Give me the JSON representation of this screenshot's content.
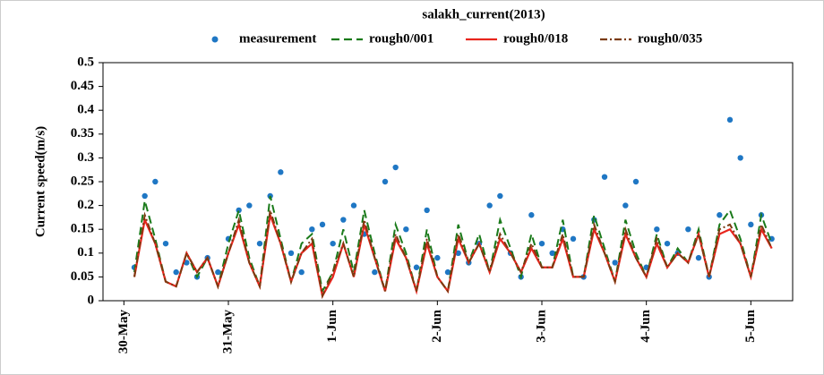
{
  "chart_data": {
    "type": "line",
    "title": "salakh_current(2013)",
    "y_label": "Current speed(m/s)",
    "x": [
      0.1,
      0.2,
      0.3,
      0.4,
      0.5,
      0.6,
      0.7,
      0.8,
      0.9,
      1.0,
      1.1,
      1.2,
      1.3,
      1.4,
      1.5,
      1.6,
      1.7,
      1.8,
      1.9,
      2.0,
      2.1,
      2.2,
      2.3,
      2.4,
      2.5,
      2.6,
      2.7,
      2.8,
      2.9,
      3.0,
      3.1,
      3.2,
      3.3,
      3.4,
      3.5,
      3.6,
      3.7,
      3.8,
      3.9,
      4.0,
      4.1,
      4.2,
      4.3,
      4.4,
      4.5,
      4.6,
      4.7,
      4.8,
      4.9,
      5.0,
      5.1,
      5.2,
      5.3,
      5.4,
      5.5,
      5.6,
      5.7,
      5.8,
      5.9,
      6.0,
      6.1,
      6.2
    ],
    "series": [
      {
        "name": "measurement",
        "color": "#1f77c4",
        "style": "dots",
        "values": [
          0.07,
          0.22,
          0.25,
          0.12,
          0.06,
          0.08,
          0.05,
          0.09,
          0.06,
          0.13,
          0.19,
          0.2,
          0.12,
          0.22,
          0.27,
          0.1,
          0.06,
          0.15,
          0.16,
          0.12,
          0.17,
          0.2,
          0.14,
          0.06,
          0.25,
          0.28,
          0.15,
          0.07,
          0.19,
          0.09,
          0.06,
          0.1,
          0.08,
          0.12,
          0.2,
          0.22,
          0.1,
          0.05,
          0.18,
          0.12,
          0.1,
          0.15,
          0.13,
          0.05,
          0.17,
          0.26,
          0.08,
          0.2,
          0.25,
          0.07,
          0.15,
          0.12,
          0.1,
          0.15,
          0.09,
          0.05,
          0.18,
          0.38,
          0.3,
          0.16,
          0.18,
          0.13
        ]
      },
      {
        "name": "rough0/001",
        "color": "#1a7a1a",
        "style": "dashed",
        "values": [
          0.06,
          0.21,
          0.13,
          0.04,
          0.03,
          0.1,
          0.05,
          0.09,
          0.03,
          0.12,
          0.19,
          0.09,
          0.03,
          0.22,
          0.13,
          0.04,
          0.12,
          0.14,
          0.02,
          0.06,
          0.15,
          0.06,
          0.19,
          0.1,
          0.02,
          0.16,
          0.1,
          0.02,
          0.15,
          0.05,
          0.02,
          0.16,
          0.08,
          0.14,
          0.06,
          0.17,
          0.11,
          0.05,
          0.14,
          0.07,
          0.07,
          0.17,
          0.05,
          0.05,
          0.18,
          0.11,
          0.04,
          0.17,
          0.1,
          0.05,
          0.14,
          0.07,
          0.11,
          0.08,
          0.15,
          0.05,
          0.16,
          0.19,
          0.13,
          0.05,
          0.18,
          0.12
        ]
      },
      {
        "name": "rough0/018",
        "color": "#e8251d",
        "style": "solid",
        "values": [
          0.05,
          0.17,
          0.12,
          0.04,
          0.03,
          0.1,
          0.06,
          0.09,
          0.03,
          0.1,
          0.16,
          0.08,
          0.03,
          0.18,
          0.12,
          0.04,
          0.1,
          0.12,
          0.01,
          0.05,
          0.12,
          0.05,
          0.16,
          0.09,
          0.02,
          0.13,
          0.09,
          0.02,
          0.12,
          0.05,
          0.02,
          0.13,
          0.08,
          0.12,
          0.06,
          0.13,
          0.1,
          0.06,
          0.11,
          0.07,
          0.07,
          0.13,
          0.05,
          0.05,
          0.15,
          0.1,
          0.04,
          0.14,
          0.09,
          0.05,
          0.12,
          0.07,
          0.1,
          0.08,
          0.14,
          0.05,
          0.14,
          0.15,
          0.12,
          0.05,
          0.15,
          0.11
        ]
      },
      {
        "name": "rough0/035",
        "color": "#7a3b10",
        "style": "dashdot",
        "values": [
          0.05,
          0.18,
          0.12,
          0.04,
          0.03,
          0.1,
          0.06,
          0.09,
          0.03,
          0.1,
          0.17,
          0.08,
          0.03,
          0.19,
          0.12,
          0.04,
          0.1,
          0.13,
          0.01,
          0.06,
          0.12,
          0.05,
          0.17,
          0.09,
          0.02,
          0.14,
          0.09,
          0.02,
          0.13,
          0.05,
          0.02,
          0.14,
          0.08,
          0.12,
          0.06,
          0.14,
          0.1,
          0.06,
          0.12,
          0.07,
          0.07,
          0.14,
          0.05,
          0.05,
          0.16,
          0.1,
          0.04,
          0.15,
          0.09,
          0.05,
          0.13,
          0.07,
          0.1,
          0.08,
          0.14,
          0.05,
          0.15,
          0.16,
          0.12,
          0.05,
          0.16,
          0.11
        ]
      }
    ],
    "xlim": [
      -0.2,
      6.4
    ],
    "xticks": [
      {
        "value": 0,
        "label": "30-May"
      },
      {
        "value": 1,
        "label": "31-May"
      },
      {
        "value": 2,
        "label": "1-Jun"
      },
      {
        "value": 3,
        "label": "2-Jun"
      },
      {
        "value": 4,
        "label": "3-Jun"
      },
      {
        "value": 5,
        "label": "4-Jun"
      },
      {
        "value": 6,
        "label": "5-Jun"
      }
    ],
    "ylim": [
      0,
      0.5
    ],
    "yticks": [
      0,
      0.05,
      0.1,
      0.15,
      0.2,
      0.25,
      0.3,
      0.35,
      0.4,
      0.45,
      0.5
    ],
    "grid": false
  }
}
